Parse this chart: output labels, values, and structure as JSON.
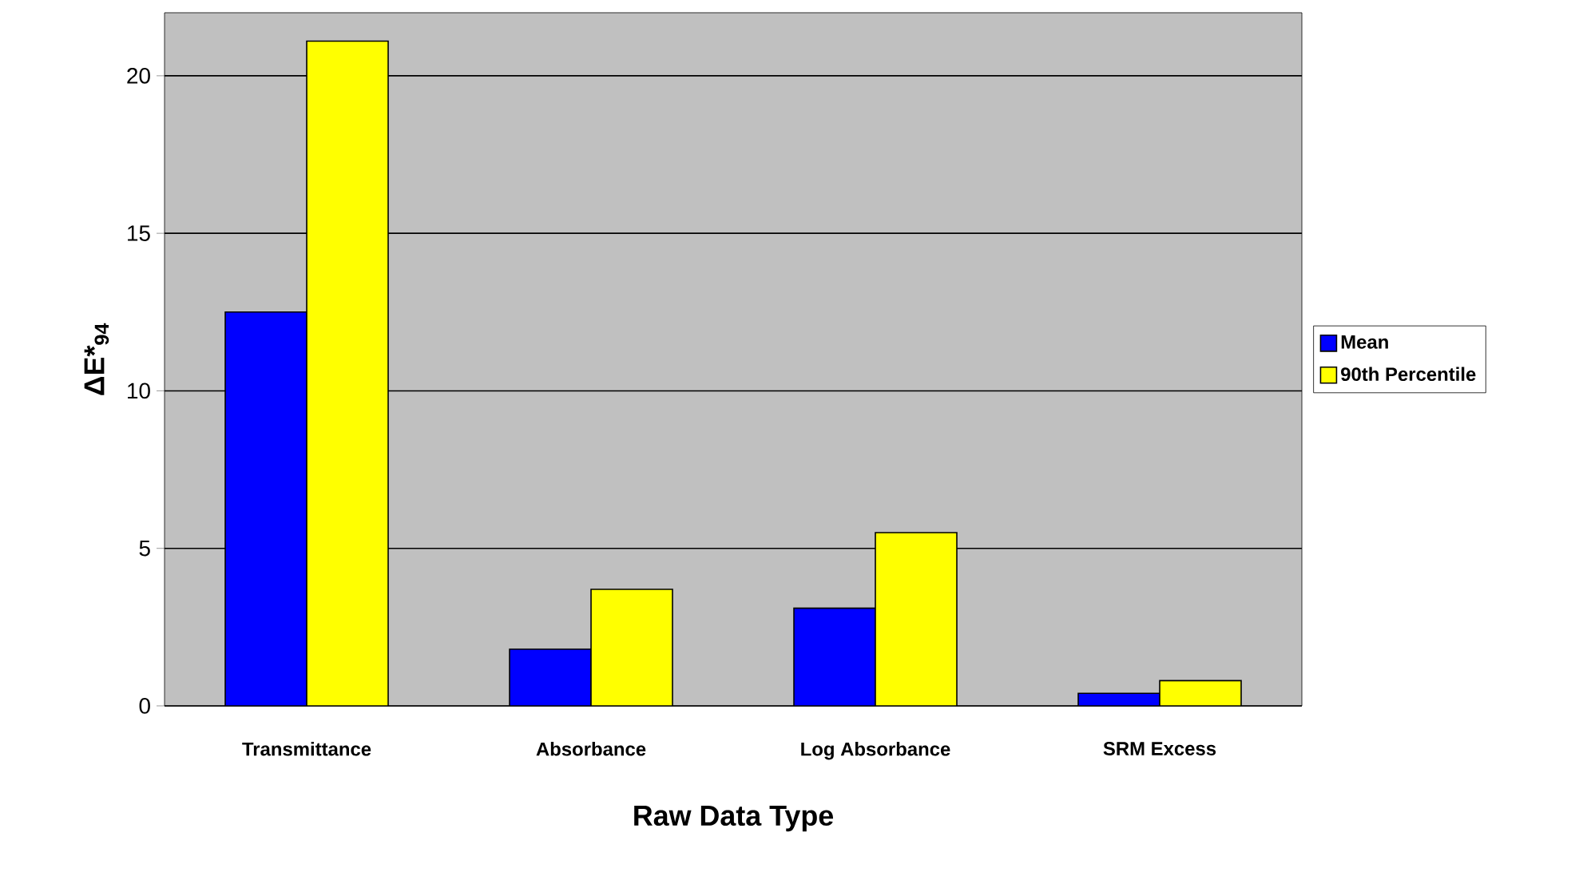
{
  "chart_data": {
    "type": "bar",
    "xlabel": "Raw Data Type",
    "ylabel": "ΔE*$_{94}$",
    "categories": [
      "Transmittance",
      "Absorbance",
      "Log Absorbance",
      "SRM Excess"
    ],
    "series": [
      {
        "name": "Mean",
        "color": "#0000ff",
        "values": [
          12.5,
          1.8,
          3.1,
          0.4
        ]
      },
      {
        "name": "90th Percentile",
        "color": "#ffff00",
        "values": [
          21.1,
          3.7,
          5.5,
          0.8
        ]
      }
    ],
    "ylim": [
      0,
      22
    ],
    "yticks": [
      0,
      5,
      10,
      15,
      20
    ],
    "grid": "y",
    "legend": "right"
  }
}
